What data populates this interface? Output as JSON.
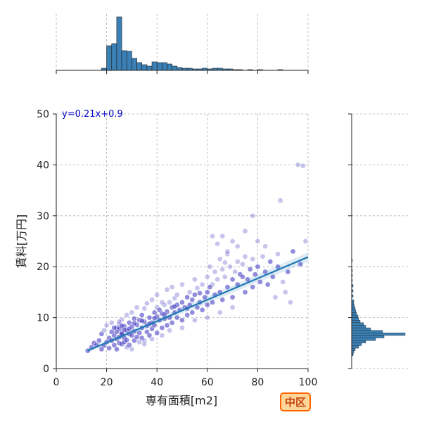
{
  "chart_data": {
    "type": "scatter",
    "xlabel": "専有面積[m2]",
    "ylabel": "賃料[万円]",
    "xlim": [
      0,
      100
    ],
    "ylim": [
      0,
      50
    ],
    "x_ticks": [
      "0",
      "20",
      "40",
      "60",
      "80",
      "100"
    ],
    "y_ticks": [
      "0",
      "10",
      "20",
      "30",
      "40",
      "50"
    ],
    "grid": true,
    "regression": {
      "label": "y=0.21x+0.9",
      "slope": 0.21,
      "intercept": 0.9,
      "x_range": [
        12.5,
        100
      ]
    },
    "colors": {
      "points": "#3b2fbf",
      "regression": "#1f77b4",
      "hist": "#3b80b5"
    },
    "x_hist": {
      "bin_width": 2,
      "bins": [
        {
          "x": 18,
          "count": 3
        },
        {
          "x": 20,
          "count": 35
        },
        {
          "x": 22,
          "count": 38
        },
        {
          "x": 24,
          "count": 76
        },
        {
          "x": 26,
          "count": 28
        },
        {
          "x": 28,
          "count": 27
        },
        {
          "x": 30,
          "count": 17
        },
        {
          "x": 32,
          "count": 11
        },
        {
          "x": 34,
          "count": 8
        },
        {
          "x": 36,
          "count": 6
        },
        {
          "x": 38,
          "count": 12
        },
        {
          "x": 40,
          "count": 11
        },
        {
          "x": 42,
          "count": 11
        },
        {
          "x": 44,
          "count": 9
        },
        {
          "x": 46,
          "count": 6
        },
        {
          "x": 48,
          "count": 4
        },
        {
          "x": 50,
          "count": 3
        },
        {
          "x": 52,
          "count": 3
        },
        {
          "x": 54,
          "count": 2
        },
        {
          "x": 56,
          "count": 2
        },
        {
          "x": 58,
          "count": 3
        },
        {
          "x": 60,
          "count": 2
        },
        {
          "x": 62,
          "count": 3
        },
        {
          "x": 64,
          "count": 3
        },
        {
          "x": 66,
          "count": 2
        },
        {
          "x": 68,
          "count": 2
        },
        {
          "x": 70,
          "count": 1
        },
        {
          "x": 72,
          "count": 1
        },
        {
          "x": 76,
          "count": 1
        },
        {
          "x": 80,
          "count": 1
        },
        {
          "x": 88,
          "count": 1
        }
      ]
    },
    "y_hist": {
      "bin_height": 0.5,
      "bins": [
        {
          "y": 2.5,
          "count": 2
        },
        {
          "y": 3.0,
          "count": 3
        },
        {
          "y": 3.5,
          "count": 5
        },
        {
          "y": 4.0,
          "count": 10
        },
        {
          "y": 4.5,
          "count": 14
        },
        {
          "y": 5.0,
          "count": 20
        },
        {
          "y": 5.5,
          "count": 34
        },
        {
          "y": 6.0,
          "count": 46
        },
        {
          "y": 6.5,
          "count": 76
        },
        {
          "y": 7.0,
          "count": 44
        },
        {
          "y": 7.5,
          "count": 27
        },
        {
          "y": 8.0,
          "count": 20
        },
        {
          "y": 8.5,
          "count": 17
        },
        {
          "y": 9.0,
          "count": 12
        },
        {
          "y": 9.5,
          "count": 10
        },
        {
          "y": 10.0,
          "count": 9
        },
        {
          "y": 10.5,
          "count": 7
        },
        {
          "y": 11.0,
          "count": 6
        },
        {
          "y": 11.5,
          "count": 5
        },
        {
          "y": 12.0,
          "count": 4
        },
        {
          "y": 12.5,
          "count": 3
        },
        {
          "y": 13.0,
          "count": 3
        },
        {
          "y": 14.0,
          "count": 2
        },
        {
          "y": 15.0,
          "count": 2
        },
        {
          "y": 16.0,
          "count": 2
        },
        {
          "y": 17.0,
          "count": 1
        },
        {
          "y": 18.0,
          "count": 1
        },
        {
          "y": 19.0,
          "count": 1
        },
        {
          "y": 21.0,
          "count": 1
        }
      ]
    },
    "points": [
      [
        12.5,
        3.5
      ],
      [
        14,
        4.2
      ],
      [
        15,
        5.0
      ],
      [
        16,
        4.6
      ],
      [
        17,
        5.5
      ],
      [
        18,
        6.8
      ],
      [
        18,
        3.8
      ],
      [
        19,
        7.5
      ],
      [
        19,
        4.5
      ],
      [
        20,
        5.2
      ],
      [
        20,
        8.5
      ],
      [
        21,
        6.0
      ],
      [
        21,
        4.0
      ],
      [
        22,
        7.2
      ],
      [
        22,
        5.5
      ],
      [
        22,
        9.0
      ],
      [
        23,
        6.5
      ],
      [
        23,
        4.6
      ],
      [
        24,
        8.0
      ],
      [
        24,
        5.8
      ],
      [
        24,
        3.8
      ],
      [
        25,
        6.2
      ],
      [
        25,
        8.7
      ],
      [
        25,
        5.0
      ],
      [
        26,
        7.0
      ],
      [
        26,
        4.8
      ],
      [
        26,
        9.6
      ],
      [
        27,
        6.0
      ],
      [
        27,
        8.3
      ],
      [
        27,
        5.2
      ],
      [
        28,
        7.5
      ],
      [
        28,
        10.5
      ],
      [
        28,
        5.6
      ],
      [
        29,
        6.8
      ],
      [
        29,
        9.0
      ],
      [
        29,
        4.6
      ],
      [
        30,
        8.2
      ],
      [
        30,
        6.5
      ],
      [
        30,
        11.0
      ],
      [
        31,
        7.3
      ],
      [
        31,
        9.8
      ],
      [
        31,
        5.5
      ],
      [
        32,
        8.6
      ],
      [
        32,
        6.2
      ],
      [
        32,
        12.0
      ],
      [
        33,
        9.5
      ],
      [
        33,
        7.0
      ],
      [
        34,
        10.5
      ],
      [
        34,
        6.0
      ],
      [
        34,
        8.0
      ],
      [
        35,
        9.2
      ],
      [
        35,
        11.8
      ],
      [
        35,
        5.5
      ],
      [
        36,
        8.4
      ],
      [
        36,
        12.8
      ],
      [
        36,
        7.2
      ],
      [
        37,
        10.0
      ],
      [
        37,
        6.5
      ],
      [
        38,
        9.0
      ],
      [
        38,
        13.5
      ],
      [
        38,
        7.8
      ],
      [
        39,
        11.0
      ],
      [
        39,
        8.5
      ],
      [
        40,
        10.2
      ],
      [
        40,
        14.5
      ],
      [
        40,
        7.0
      ],
      [
        40,
        12.0
      ],
      [
        41,
        9.5
      ],
      [
        41,
        11.5
      ],
      [
        42,
        10.8
      ],
      [
        42,
        13.0
      ],
      [
        42,
        8.0
      ],
      [
        43,
        12.5
      ],
      [
        43,
        9.8
      ],
      [
        44,
        11.2
      ],
      [
        44,
        15.5
      ],
      [
        44,
        8.5
      ],
      [
        45,
        13.0
      ],
      [
        45,
        10.0
      ],
      [
        46,
        12.0
      ],
      [
        46,
        9.0
      ],
      [
        46,
        16.0
      ],
      [
        47,
        13.8
      ],
      [
        47,
        11.0
      ],
      [
        48,
        12.5
      ],
      [
        48,
        10.0
      ],
      [
        48,
        14.5
      ],
      [
        49,
        11.5
      ],
      [
        50,
        13.0
      ],
      [
        50,
        9.5
      ],
      [
        50,
        16.5
      ],
      [
        51,
        12.0
      ],
      [
        52,
        14.0
      ],
      [
        52,
        10.5
      ],
      [
        53,
        15.0
      ],
      [
        53,
        12.5
      ],
      [
        54,
        13.5
      ],
      [
        54,
        11.0
      ],
      [
        55,
        17.5
      ],
      [
        55,
        14.5
      ],
      [
        56,
        12.0
      ],
      [
        56,
        15.8
      ],
      [
        57,
        13.0
      ],
      [
        58,
        16.5
      ],
      [
        58,
        11.5
      ],
      [
        59,
        14.0
      ],
      [
        60,
        18.0
      ],
      [
        60,
        12.5
      ],
      [
        60,
        15.0
      ],
      [
        61,
        20.0
      ],
      [
        62,
        16.5
      ],
      [
        62,
        13.0
      ],
      [
        63,
        19.0
      ],
      [
        63,
        14.5
      ],
      [
        64,
        17.5
      ],
      [
        65,
        21.5
      ],
      [
        65,
        15.0
      ],
      [
        66,
        19.5
      ],
      [
        66,
        13.5
      ],
      [
        67,
        18.0
      ],
      [
        68,
        22.5
      ],
      [
        68,
        16.0
      ],
      [
        69,
        20.0
      ],
      [
        70,
        17.5
      ],
      [
        70,
        14.0
      ],
      [
        71,
        19.0
      ],
      [
        72,
        21.0
      ],
      [
        72,
        16.5
      ],
      [
        73,
        18.5
      ],
      [
        74,
        20.5
      ],
      [
        75,
        15.0
      ],
      [
        75,
        22.0
      ],
      [
        76,
        17.5
      ],
      [
        77,
        19.5
      ],
      [
        78,
        16.0
      ],
      [
        78,
        21.5
      ],
      [
        79,
        18.5
      ],
      [
        80,
        20.0
      ],
      [
        80,
        25.0
      ],
      [
        81,
        17.0
      ],
      [
        82,
        22.0
      ],
      [
        83,
        19.0
      ],
      [
        84,
        16.5
      ],
      [
        85,
        21.0
      ],
      [
        86,
        18.0
      ],
      [
        87,
        14.0
      ],
      [
        88,
        20.0
      ],
      [
        89,
        33.0
      ],
      [
        90,
        17.0
      ],
      [
        91,
        15.0
      ],
      [
        92,
        19.0
      ],
      [
        93,
        13.0
      ],
      [
        96,
        40.0
      ],
      [
        98,
        39.8
      ],
      [
        99,
        25.0
      ],
      [
        62,
        26.0
      ],
      [
        66,
        26.0
      ],
      [
        70,
        25.0
      ],
      [
        72,
        24.0
      ],
      [
        78,
        30.0
      ],
      [
        75,
        27.0
      ],
      [
        68,
        23.0
      ],
      [
        64,
        24.5
      ],
      [
        45,
        7.5
      ],
      [
        35,
        4.8
      ],
      [
        30,
        3.8
      ],
      [
        28,
        4.2
      ],
      [
        33,
        5.2
      ],
      [
        38,
        5.8
      ],
      [
        42,
        6.5
      ],
      [
        50,
        8.0
      ],
      [
        55,
        9.5
      ],
      [
        60,
        10.0
      ],
      [
        65,
        11.0
      ],
      [
        70,
        12.0
      ],
      [
        25,
        7.8
      ],
      [
        26,
        8.4
      ],
      [
        27,
        7.6
      ],
      [
        24,
        7.2
      ],
      [
        23,
        8.0
      ],
      [
        26,
        6.8
      ],
      [
        25,
        9.2
      ],
      [
        29,
        7.8
      ],
      [
        31,
        8.9
      ],
      [
        34,
        9.4
      ],
      [
        37,
        8.8
      ],
      [
        39,
        9.9
      ],
      [
        43,
        10.6
      ],
      [
        47,
        12.2
      ],
      [
        52,
        11.8
      ],
      [
        57,
        14.8
      ],
      [
        61,
        16.0
      ],
      [
        67,
        20.8
      ],
      [
        74,
        18.0
      ],
      [
        83,
        24.0
      ],
      [
        88,
        22.5
      ],
      [
        94,
        23.0
      ],
      [
        97,
        20.5
      ]
    ]
  },
  "badge": {
    "label": "中区"
  }
}
